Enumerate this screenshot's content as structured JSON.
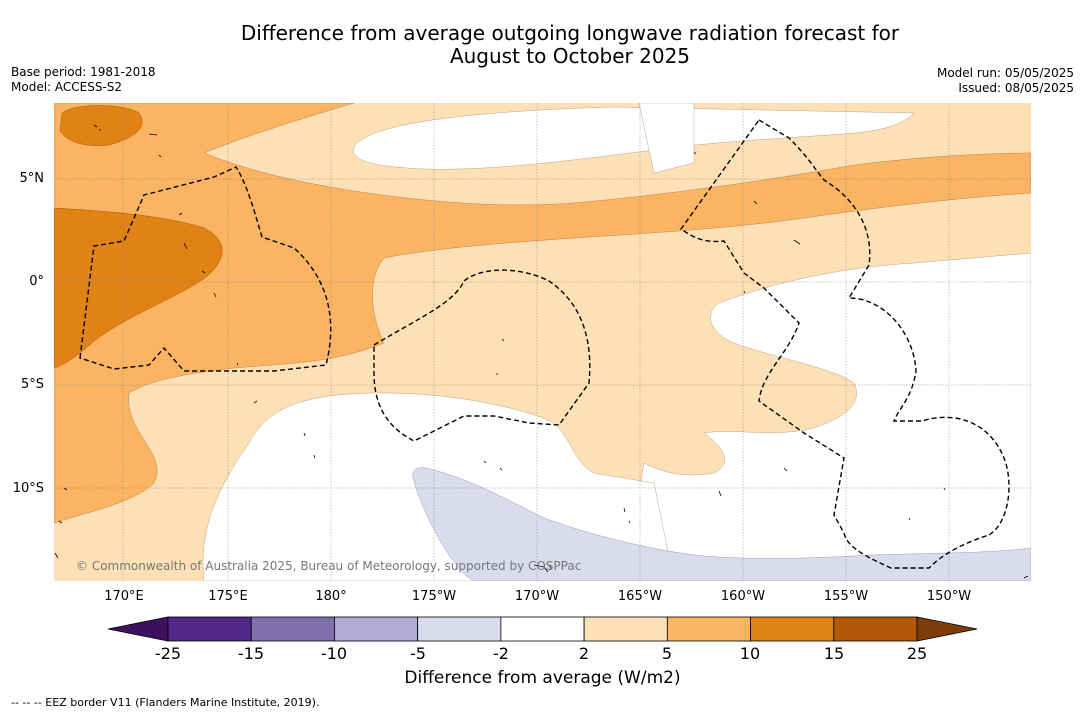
{
  "title_line1": "Difference from average outgoing longwave radiation forecast for",
  "title_line2": "August to October 2025",
  "meta_left": [
    "Base period: 1981-2018",
    "Model: ACCESS-S2"
  ],
  "meta_right": [
    "Model run: 05/05/2025",
    "Issued: 08/05/2025"
  ],
  "lat_labels": [
    "5°N",
    "0°",
    "5°S",
    "10°S"
  ],
  "lon_labels": [
    "170°E",
    "175°E",
    "180°",
    "175°W",
    "170°W",
    "165°W",
    "160°W",
    "155°W",
    "150°W"
  ],
  "copyright": "© Commonwealth of Australia 2025, Bureau of Meteorology, supported by COSPPac",
  "colorbar": {
    "ticks": [
      "-25",
      "-15",
      "-10",
      "-5",
      "-2",
      "2",
      "5",
      "10",
      "15",
      "25"
    ],
    "colors": [
      "#3d1160",
      "#54288a",
      "#7e71ad",
      "#b1abd3",
      "#dadbec",
      "#ffffff",
      "#fde0b5",
      "#fbb462",
      "#e08214",
      "#b35806",
      "#7f3b08"
    ],
    "title": "Difference from average (W/m2)"
  },
  "footer": "-- -- -- EEZ border V11 (Flanders Marine Institute, 2019)."
}
